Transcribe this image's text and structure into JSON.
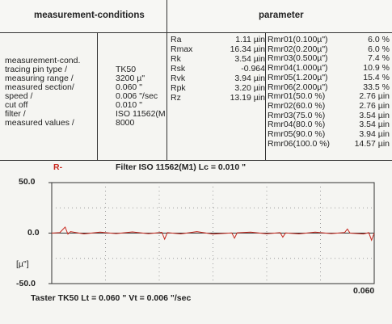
{
  "header": {
    "left_title": "measurement-conditions",
    "right_title": "parameter"
  },
  "conditions": {
    "labels": [
      "measurement-cond.",
      "tracing pin type /",
      "measuring range /",
      "measured section/",
      "speed /",
      "cut off",
      "filter /",
      "measured values /"
    ],
    "values": [
      "",
      "TK50",
      "3200 µ\"",
      "0.060 \"",
      "0.006 \"/sec",
      "0.010 \"",
      "ISO 11562(M",
      "8000"
    ]
  },
  "params_mid": [
    {
      "name": "Ra",
      "value": "1.11 µin"
    },
    {
      "name": "Rmax",
      "value": "16.34 µin"
    },
    {
      "name": "Rk",
      "value": "3.54 µin"
    },
    {
      "name": "Rsk",
      "value": "-0.964"
    },
    {
      "name": "Rvk",
      "value": "3.94 µin"
    },
    {
      "name": "Rpk",
      "value": "3.20 µin"
    },
    {
      "name": "Rz",
      "value": "13.19 µin"
    }
  ],
  "params_right": [
    {
      "name": "Rmr01(0.100µ\")",
      "value": "6.0  %"
    },
    {
      "name": "Rmr02(0.200µ\")",
      "value": "6.0  %"
    },
    {
      "name": "Rmr03(0.500µ\")",
      "value": "7.4  %"
    },
    {
      "name": "Rmr04(1.000µ\")",
      "value": "10.9  %"
    },
    {
      "name": "Rmr05(1.200µ\")",
      "value": "15.4  %"
    },
    {
      "name": "Rmr06(2.000µ\")",
      "value": "33.5  %"
    },
    {
      "name": "Rmr01(50.0 %)",
      "value": "2.76 µin"
    },
    {
      "name": "Rmr02(60.0 %)",
      "value": "2.76 µin"
    },
    {
      "name": "Rmr03(75.0 %)",
      "value": "3.54 µin"
    },
    {
      "name": "Rmr04(80.0 %)",
      "value": "3.54 µin"
    },
    {
      "name": "Rmr05(90.0 %)",
      "value": "3.94 µin"
    },
    {
      "name": "Rmr06(100.0 %)",
      "value": "14.57 µin"
    }
  ],
  "profile": {
    "tag": "R-",
    "filter_line": "Filter  ISO 11562(M1)  Lc = 0.010  \"",
    "y_ticks": [
      "50.0",
      "0.0",
      "-50.0"
    ],
    "unit": "[µ\"]",
    "x_end": "0.060",
    "footer": "Taster TK50    Lt = 0.060  \"     Vt = 0.006  \"/sec",
    "trace_color": "#c8281e",
    "grid_color": "#9a9a9a",
    "axis_color": "#333333"
  },
  "chart_data": {
    "type": "line",
    "title": "",
    "xlabel": "",
    "ylabel": "[µ\"]",
    "xlim": [
      0,
      0.06
    ],
    "ylim": [
      -50,
      50
    ],
    "y_ticks": [
      50.0,
      0.0,
      -50.0
    ],
    "series": [
      {
        "x": [
          0.0,
          0.0015,
          0.0025,
          0.003,
          0.0035,
          0.006,
          0.009,
          0.012,
          0.015,
          0.018,
          0.0205,
          0.021,
          0.0215,
          0.024,
          0.027,
          0.03,
          0.0335,
          0.034,
          0.0345,
          0.037,
          0.04,
          0.0425,
          0.043,
          0.0435,
          0.046,
          0.049,
          0.052,
          0.0545,
          0.055,
          0.0555,
          0.058,
          0.059,
          0.0595,
          0.06
        ],
        "y": [
          0.0,
          0.5,
          6.0,
          -1.0,
          1.5,
          -0.8,
          1.0,
          -0.5,
          1.2,
          -0.6,
          0.8,
          -6.0,
          0.5,
          -0.8,
          1.5,
          -1.0,
          0.2,
          -5.0,
          0.3,
          1.0,
          -0.7,
          0.5,
          -4.0,
          0.2,
          -0.8,
          1.0,
          -0.5,
          0.6,
          4.0,
          0.0,
          -0.9,
          0.5,
          -7.0,
          0.0
        ]
      }
    ]
  }
}
